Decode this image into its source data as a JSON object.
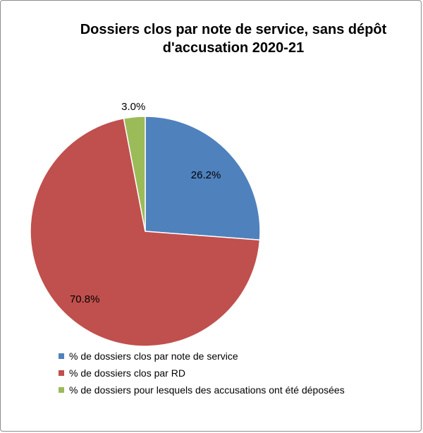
{
  "chart_data": {
    "type": "pie",
    "title_line1": "Dossiers clos par note de service, sans dépôt",
    "title_line2": "d'accusation 2020-21",
    "slices": [
      {
        "label": "% de dossiers clos par note de service",
        "value": 26.2,
        "value_label": "26.2%",
        "color": "#4F81BD"
      },
      {
        "label": "% de dossiers clos par RD",
        "value": 70.8,
        "value_label": "70.8%",
        "color": "#C0504D"
      },
      {
        "label": "% de dossiers pour lesquels des accusations ont été déposées",
        "value": 3.0,
        "value_label": "3.0%",
        "color": "#9BBB59"
      }
    ],
    "legend_position": "bottom-left",
    "start_angle_deg": 0,
    "direction": "clockwise"
  }
}
